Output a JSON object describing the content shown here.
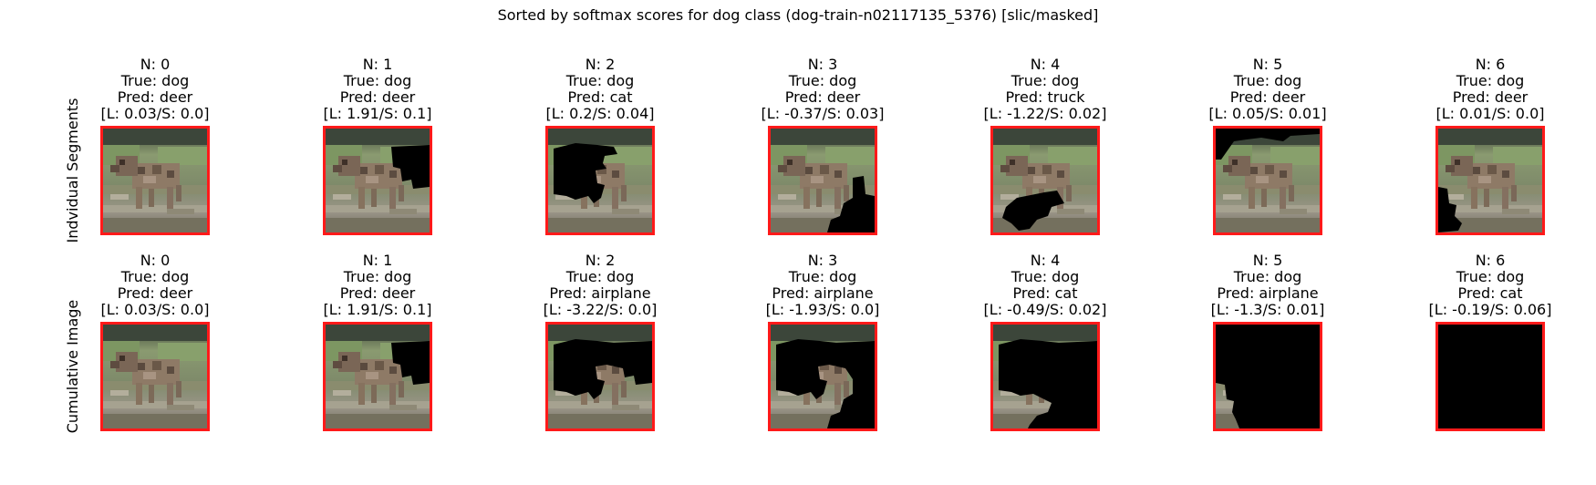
{
  "title": "Sorted by softmax scores for dog class (dog-train-n02117135_5376) [slic/masked]",
  "colors": {
    "frame": "#ff1a1a",
    "mask": "#000000"
  },
  "rows": [
    {
      "label": "Indvidual Segments",
      "panels": [
        {
          "n": "N: 0",
          "true_label": "True: dog",
          "pred": "Pred: deer",
          "scores": "[L: 0.03/S: 0.0]"
        },
        {
          "n": "N: 1",
          "true_label": "True: dog",
          "pred": "Pred: deer",
          "scores": "[L: 1.91/S: 0.1]"
        },
        {
          "n": "N: 2",
          "true_label": "True: dog",
          "pred": "Pred: cat",
          "scores": "[L: 0.2/S: 0.04]"
        },
        {
          "n": "N: 3",
          "true_label": "True: dog",
          "pred": "Pred: deer",
          "scores": "[L: -0.37/S: 0.03]"
        },
        {
          "n": "N: 4",
          "true_label": "True: dog",
          "pred": "Pred: truck",
          "scores": "[L: -1.22/S: 0.02]"
        },
        {
          "n": "N: 5",
          "true_label": "True: dog",
          "pred": "Pred: deer",
          "scores": "[L: 0.05/S: 0.01]"
        },
        {
          "n": "N: 6",
          "true_label": "True: dog",
          "pred": "Pred: deer",
          "scores": "[L: 0.01/S: 0.0]"
        }
      ]
    },
    {
      "label": "Cumulative Image",
      "panels": [
        {
          "n": "N: 0",
          "true_label": "True: dog",
          "pred": "Pred: deer",
          "scores": "[L: 0.03/S: 0.0]"
        },
        {
          "n": "N: 1",
          "true_label": "True: dog",
          "pred": "Pred: deer",
          "scores": "[L: 1.91/S: 0.1]"
        },
        {
          "n": "N: 2",
          "true_label": "True: dog",
          "pred": "Pred: airplane",
          "scores": "[L: -3.22/S: 0.0]"
        },
        {
          "n": "N: 3",
          "true_label": "True: dog",
          "pred": "Pred: airplane",
          "scores": "[L: -1.93/S: 0.0]"
        },
        {
          "n": "N: 4",
          "true_label": "True: dog",
          "pred": "Pred: cat",
          "scores": "[L: -0.49/S: 0.02]"
        },
        {
          "n": "N: 5",
          "true_label": "True: dog",
          "pred": "Pred: airplane",
          "scores": "[L: -1.3/S: 0.01]"
        },
        {
          "n": "N: 6",
          "true_label": "True: dog",
          "pred": "Pred: cat",
          "scores": "[L: -0.19/S: 0.06]"
        }
      ]
    }
  ]
}
